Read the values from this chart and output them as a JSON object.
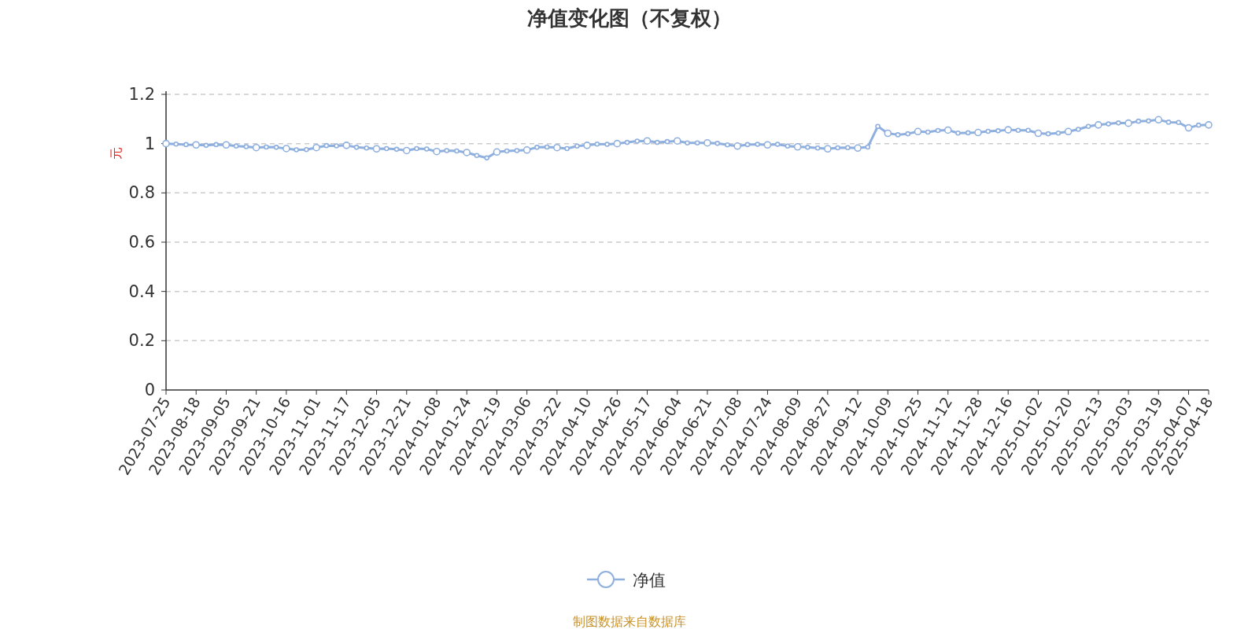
{
  "chart_data": {
    "type": "line",
    "title": "净值变化图（不复权）",
    "ylabel": "元",
    "categories": [
      "2023-07-25",
      null,
      null,
      "2023-08-18",
      null,
      null,
      "2023-09-05",
      null,
      null,
      "2023-09-21",
      null,
      null,
      "2023-10-16",
      null,
      null,
      "2023-11-01",
      null,
      null,
      "2023-11-17",
      null,
      null,
      "2023-12-05",
      null,
      null,
      "2023-12-21",
      null,
      null,
      "2024-01-08",
      null,
      null,
      "2024-01-24",
      null,
      null,
      "2024-02-19",
      null,
      null,
      "2024-03-06",
      null,
      null,
      "2024-03-22",
      null,
      null,
      "2024-04-10",
      null,
      null,
      "2024-04-26",
      null,
      null,
      "2024-05-17",
      null,
      null,
      "2024-06-04",
      null,
      null,
      "2024-06-21",
      null,
      null,
      "2024-07-08",
      null,
      null,
      "2024-07-24",
      null,
      null,
      "2024-08-09",
      null,
      null,
      "2024-08-27",
      null,
      null,
      "2024-09-12",
      null,
      null,
      "2024-10-09",
      null,
      null,
      "2024-10-25",
      null,
      null,
      "2024-11-12",
      null,
      null,
      "2024-11-28",
      null,
      null,
      "2024-12-16",
      null,
      null,
      "2025-01-02",
      null,
      null,
      "2025-01-20",
      null,
      null,
      "2025-02-13",
      null,
      null,
      "2025-03-03",
      null,
      null,
      "2025-03-19",
      null,
      null,
      "2025-04-07",
      null,
      "2025-04-18"
    ],
    "series": [
      {
        "name": "净值",
        "color": "#8fb0df",
        "values": [
          1.0,
          0.998,
          0.996,
          0.995,
          0.993,
          0.996,
          0.995,
          0.99,
          0.988,
          0.984,
          0.986,
          0.985,
          0.98,
          0.975,
          0.976,
          0.984,
          0.992,
          0.991,
          0.993,
          0.985,
          0.982,
          0.979,
          0.98,
          0.977,
          0.972,
          0.98,
          0.978,
          0.968,
          0.972,
          0.97,
          0.964,
          0.952,
          0.942,
          0.966,
          0.97,
          0.972,
          0.974,
          0.985,
          0.986,
          0.984,
          0.98,
          0.99,
          0.993,
          0.998,
          0.997,
          1.0,
          1.005,
          1.01,
          1.011,
          1.005,
          1.008,
          1.011,
          1.003,
          1.003,
          1.003,
          1.001,
          0.995,
          0.99,
          0.996,
          0.997,
          0.995,
          0.997,
          0.99,
          0.987,
          0.985,
          0.982,
          0.979,
          0.983,
          0.984,
          0.982,
          0.986,
          1.07,
          1.042,
          1.036,
          1.04,
          1.049,
          1.047,
          1.053,
          1.055,
          1.043,
          1.044,
          1.045,
          1.05,
          1.052,
          1.056,
          1.054,
          1.054,
          1.042,
          1.04,
          1.043,
          1.049,
          1.058,
          1.07,
          1.076,
          1.08,
          1.084,
          1.083,
          1.091,
          1.092,
          1.097,
          1.087,
          1.086,
          1.064,
          1.075,
          1.076
        ]
      }
    ],
    "ylim": [
      0,
      1.2
    ],
    "yticks": [
      0,
      0.2,
      0.4,
      0.6,
      0.8,
      1,
      1.2
    ],
    "grid": "y",
    "legend": "bottom",
    "marker": "circle",
    "line_style": "solid",
    "annotations": [
      "制图数据来自数据库"
    ]
  }
}
